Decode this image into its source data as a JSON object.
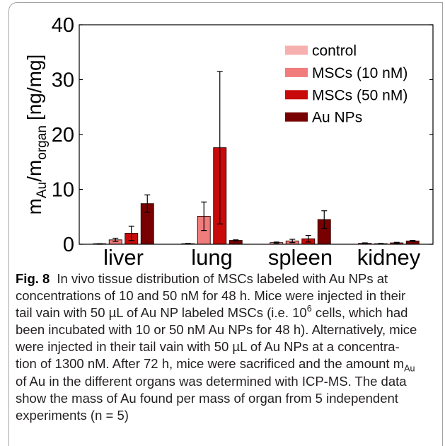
{
  "chart_data": {
    "type": "bar",
    "categories": [
      "liver",
      "lung",
      "spleen",
      "kidney"
    ],
    "series": [
      {
        "name": "control",
        "color": "#f7b0b0",
        "values": [
          0.05,
          0.1,
          0.3,
          0.2
        ],
        "errors": [
          0.05,
          0.05,
          0.1,
          0.05
        ]
      },
      {
        "name": "MSCs (10 nM)",
        "color": "#f07c7c",
        "values": [
          0.8,
          5.1,
          0.6,
          0.1
        ],
        "errors": [
          0.3,
          2.6,
          0.3,
          0.05
        ]
      },
      {
        "name": "MSCs (50 nM)",
        "color": "#c80a0a",
        "values": [
          2.0,
          17.6,
          1.0,
          0.25
        ],
        "errors": [
          1.3,
          13.9,
          0.6,
          0.1
        ]
      },
      {
        "name": "Au NPs",
        "color": "#780000",
        "values": [
          7.4,
          0.7,
          4.5,
          0.6
        ],
        "errors": [
          1.6,
          0.1,
          1.6,
          0.1
        ]
      }
    ],
    "ylabel": {
      "m1": "m",
      "sub1": "Au",
      "m2": "/m",
      "sub2": "organ",
      "unit": "[ng/mg]"
    },
    "ylim": [
      0,
      40
    ],
    "yticks": [
      0,
      10,
      20,
      30,
      40
    ],
    "legend": "top-right",
    "grid": false
  },
  "caption": {
    "label": "Fig. 8",
    "lines": [
      "In vivo tissue distribution of MSCs labeled with Au NPs at",
      "concentrations of 10 and 50 nM for 48 h. Mice were injected in their",
      [
        "tail vain with 50 µL of Au NP labeled MSCs (i.e. 10",
        "6",
        " cells, which had"
      ],
      "been incubated with 10 or 50 nM Au NPs for 48 h). Alternatively, mice",
      "were injected in their tail vain with 50 µL of Au NPs at a concentra-",
      [
        "tion of 1300 nM. After 72 h, mice were sacrificed and the amount m",
        "Au"
      ],
      "of Au in the different organs was determined with ICP-MS. The data",
      "show the mass of Au found per mass of organ from 5 independent",
      "experiments (n = 5)"
    ]
  }
}
